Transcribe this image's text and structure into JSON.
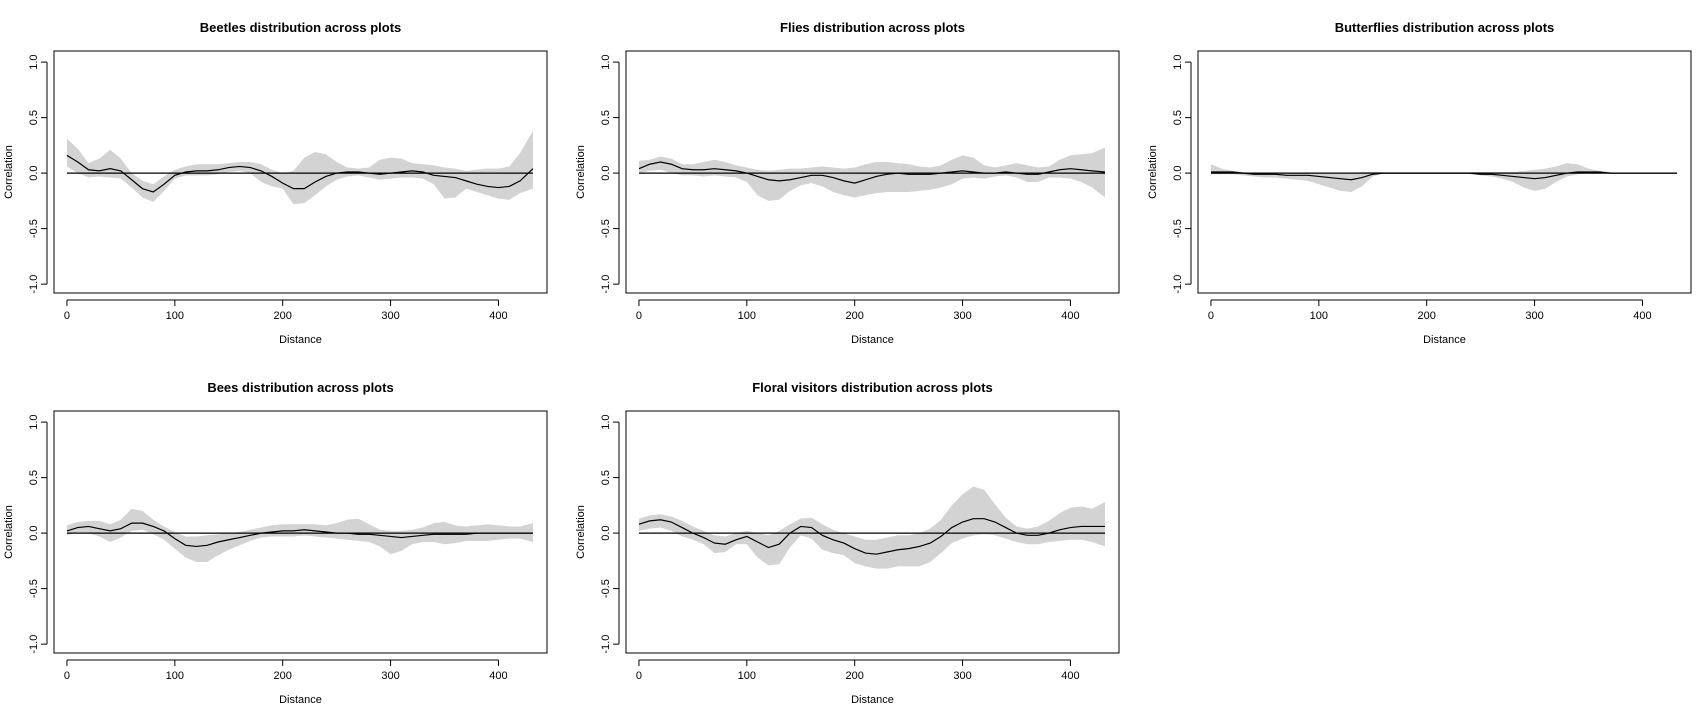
{
  "colors": {
    "band": "#d3d3d3",
    "line": "#000000",
    "axis": "#000000",
    "background": "#ffffff"
  },
  "chart_data": [
    {
      "type": "line",
      "title": "Beetles distribution across plots",
      "xlabel": "Distance",
      "ylabel": "Correlation",
      "xlim": [
        -12,
        445
      ],
      "ylim": [
        -1.08,
        1.1
      ],
      "xticks": [
        0,
        100,
        200,
        300,
        400
      ],
      "yticks": [
        -1.0,
        -0.5,
        0.0,
        0.5,
        1.0
      ],
      "xtick_labels": [
        "0",
        "100",
        "200",
        "300",
        "400"
      ],
      "ytick_labels": [
        "-1.0",
        "-0.5",
        "0.0",
        "0.5",
        "1.0"
      ],
      "grid": false,
      "x": [
        0,
        10,
        20,
        30,
        40,
        50,
        60,
        70,
        80,
        90,
        100,
        110,
        120,
        130,
        140,
        150,
        160,
        170,
        180,
        190,
        200,
        210,
        220,
        230,
        240,
        250,
        260,
        270,
        280,
        290,
        300,
        310,
        320,
        330,
        340,
        350,
        360,
        370,
        380,
        390,
        400,
        410,
        420,
        432
      ],
      "series": [
        {
          "values": [
            0.16,
            0.1,
            0.03,
            0.02,
            0.04,
            0.02,
            -0.06,
            -0.14,
            -0.17,
            -0.1,
            -0.02,
            0.01,
            0.02,
            0.02,
            0.03,
            0.05,
            0.06,
            0.05,
            0.02,
            -0.03,
            -0.09,
            -0.14,
            -0.14,
            -0.08,
            -0.03,
            0.0,
            0.01,
            0.01,
            0.0,
            -0.01,
            0.0,
            0.01,
            0.02,
            0.01,
            -0.02,
            -0.03,
            -0.04,
            -0.07,
            -0.1,
            -0.12,
            -0.13,
            -0.12,
            -0.07,
            0.04
          ]
        }
      ],
      "bands": [
        {
          "lower": [
            0.06,
            0.0,
            -0.04,
            -0.03,
            -0.04,
            -0.05,
            -0.13,
            -0.22,
            -0.26,
            -0.16,
            -0.05,
            -0.02,
            -0.02,
            -0.02,
            -0.01,
            0.01,
            0.02,
            0.0,
            -0.08,
            -0.12,
            -0.14,
            -0.28,
            -0.27,
            -0.2,
            -0.12,
            -0.06,
            -0.03,
            -0.02,
            -0.04,
            -0.06,
            -0.05,
            -0.04,
            -0.04,
            -0.05,
            -0.1,
            -0.23,
            -0.22,
            -0.14,
            -0.17,
            -0.2,
            -0.23,
            -0.24,
            -0.18,
            -0.14
          ],
          "upper": [
            0.31,
            0.22,
            0.09,
            0.13,
            0.21,
            0.13,
            0.0,
            -0.07,
            -0.1,
            -0.03,
            0.03,
            0.06,
            0.08,
            0.08,
            0.08,
            0.09,
            0.1,
            0.1,
            0.08,
            0.03,
            0.0,
            0.02,
            0.14,
            0.19,
            0.17,
            0.1,
            0.05,
            0.04,
            0.05,
            0.12,
            0.14,
            0.13,
            0.09,
            0.08,
            0.07,
            0.05,
            0.04,
            0.02,
            0.03,
            0.04,
            0.04,
            0.06,
            0.18,
            0.38
          ]
        }
      ]
    },
    {
      "type": "line",
      "title": "Flies distribution across plots",
      "xlabel": "Distance",
      "ylabel": "Correlation",
      "xlim": [
        -12,
        445
      ],
      "ylim": [
        -1.08,
        1.1
      ],
      "xticks": [
        0,
        100,
        200,
        300,
        400
      ],
      "yticks": [
        -1.0,
        -0.5,
        0.0,
        0.5,
        1.0
      ],
      "xtick_labels": [
        "0",
        "100",
        "200",
        "300",
        "400"
      ],
      "ytick_labels": [
        "-1.0",
        "-0.5",
        "0.0",
        "0.5",
        "1.0"
      ],
      "grid": false,
      "x": [
        0,
        10,
        20,
        30,
        40,
        50,
        60,
        70,
        80,
        90,
        100,
        110,
        120,
        130,
        140,
        150,
        160,
        170,
        180,
        190,
        200,
        210,
        220,
        230,
        240,
        250,
        260,
        270,
        280,
        290,
        300,
        310,
        320,
        330,
        340,
        350,
        360,
        370,
        380,
        390,
        400,
        410,
        420,
        432
      ],
      "series": [
        {
          "values": [
            0.04,
            0.08,
            0.1,
            0.08,
            0.04,
            0.03,
            0.03,
            0.04,
            0.03,
            0.02,
            0.0,
            -0.03,
            -0.06,
            -0.07,
            -0.06,
            -0.04,
            -0.02,
            -0.02,
            -0.04,
            -0.07,
            -0.09,
            -0.06,
            -0.03,
            -0.01,
            0.0,
            -0.01,
            -0.01,
            -0.01,
            0.0,
            0.01,
            0.02,
            0.01,
            0.0,
            0.0,
            0.01,
            0.0,
            -0.01,
            -0.01,
            0.01,
            0.03,
            0.04,
            0.03,
            0.02,
            0.01
          ]
        }
      ],
      "bands": [
        {
          "lower": [
            0.0,
            0.02,
            0.03,
            0.0,
            -0.02,
            -0.02,
            -0.03,
            -0.02,
            -0.03,
            -0.04,
            -0.08,
            -0.2,
            -0.25,
            -0.24,
            -0.16,
            -0.11,
            -0.09,
            -0.12,
            -0.17,
            -0.2,
            -0.22,
            -0.2,
            -0.18,
            -0.17,
            -0.17,
            -0.17,
            -0.16,
            -0.15,
            -0.13,
            -0.1,
            -0.05,
            -0.04,
            -0.05,
            -0.03,
            -0.02,
            -0.04,
            -0.08,
            -0.08,
            -0.04,
            -0.04,
            -0.05,
            -0.08,
            -0.13,
            -0.22
          ],
          "upper": [
            0.11,
            0.12,
            0.15,
            0.13,
            0.08,
            0.08,
            0.1,
            0.12,
            0.1,
            0.07,
            0.05,
            0.03,
            0.02,
            0.03,
            0.04,
            0.04,
            0.05,
            0.06,
            0.05,
            0.04,
            0.05,
            0.08,
            0.1,
            0.1,
            0.09,
            0.08,
            0.06,
            0.05,
            0.07,
            0.12,
            0.16,
            0.14,
            0.07,
            0.05,
            0.07,
            0.09,
            0.07,
            0.05,
            0.06,
            0.12,
            0.16,
            0.17,
            0.18,
            0.23
          ]
        }
      ]
    },
    {
      "type": "line",
      "title": "Butterflies distribution across plots",
      "xlabel": "Distance",
      "ylabel": "Correlation",
      "xlim": [
        -12,
        445
      ],
      "ylim": [
        -1.08,
        1.1
      ],
      "xticks": [
        0,
        100,
        200,
        300,
        400
      ],
      "yticks": [
        -1.0,
        -0.5,
        0.0,
        0.5,
        1.0
      ],
      "xtick_labels": [
        "0",
        "100",
        "200",
        "300",
        "400"
      ],
      "ytick_labels": [
        "-1.0",
        "-0.5",
        "0.0",
        "0.5",
        "1.0"
      ],
      "grid": false,
      "x": [
        0,
        10,
        20,
        30,
        40,
        50,
        60,
        70,
        80,
        90,
        100,
        110,
        120,
        130,
        140,
        150,
        160,
        170,
        180,
        190,
        200,
        210,
        220,
        230,
        240,
        250,
        260,
        270,
        280,
        290,
        300,
        310,
        320,
        330,
        340,
        350,
        360,
        370,
        380,
        390,
        400,
        410,
        420,
        432
      ],
      "series": [
        {
          "values": [
            0.01,
            0.01,
            0.01,
            0.0,
            -0.01,
            -0.01,
            -0.01,
            -0.02,
            -0.02,
            -0.02,
            -0.03,
            -0.04,
            -0.05,
            -0.06,
            -0.04,
            -0.01,
            0.0,
            0.0,
            0.0,
            0.0,
            0.0,
            0.0,
            0.0,
            0.0,
            0.0,
            -0.01,
            -0.01,
            -0.02,
            -0.03,
            -0.04,
            -0.05,
            -0.04,
            -0.02,
            0.0,
            0.01,
            0.01,
            0.01,
            0.0,
            0.0,
            0.0,
            0.0,
            0.0,
            0.0,
            0.0
          ]
        }
      ],
      "bands": [
        {
          "lower": [
            -0.01,
            -0.01,
            -0.01,
            -0.02,
            -0.03,
            -0.04,
            -0.04,
            -0.05,
            -0.06,
            -0.07,
            -0.1,
            -0.13,
            -0.16,
            -0.17,
            -0.12,
            -0.03,
            0.0,
            0.0,
            0.0,
            0.0,
            0.0,
            0.0,
            0.0,
            0.0,
            -0.01,
            -0.02,
            -0.03,
            -0.05,
            -0.08,
            -0.13,
            -0.16,
            -0.14,
            -0.08,
            -0.03,
            -0.01,
            0.0,
            0.0,
            0.0,
            0.0,
            0.0,
            0.0,
            0.0,
            0.0,
            0.0
          ],
          "upper": [
            0.08,
            0.04,
            0.02,
            0.01,
            0.0,
            0.0,
            0.0,
            0.0,
            0.0,
            0.0,
            0.0,
            0.0,
            0.0,
            0.0,
            0.01,
            0.01,
            0.01,
            0.01,
            0.01,
            0.01,
            0.01,
            0.01,
            0.01,
            0.01,
            0.01,
            0.01,
            0.01,
            0.01,
            0.01,
            0.02,
            0.03,
            0.04,
            0.06,
            0.09,
            0.08,
            0.04,
            0.02,
            0.01,
            0.0,
            0.0,
            0.0,
            0.0,
            0.0,
            0.0
          ]
        }
      ]
    },
    {
      "type": "line",
      "title": "Bees distribution across plots",
      "xlabel": "Distance",
      "ylabel": "Correlation",
      "xlim": [
        -12,
        445
      ],
      "ylim": [
        -1.08,
        1.1
      ],
      "xticks": [
        0,
        100,
        200,
        300,
        400
      ],
      "yticks": [
        -1.0,
        -0.5,
        0.0,
        0.5,
        1.0
      ],
      "xtick_labels": [
        "0",
        "100",
        "200",
        "300",
        "400"
      ],
      "ytick_labels": [
        "-1.0",
        "-0.5",
        "0.0",
        "0.5",
        "1.0"
      ],
      "grid": false,
      "x": [
        0,
        10,
        20,
        30,
        40,
        50,
        60,
        70,
        80,
        90,
        100,
        110,
        120,
        130,
        140,
        150,
        160,
        170,
        180,
        190,
        200,
        210,
        220,
        230,
        240,
        250,
        260,
        270,
        280,
        290,
        300,
        310,
        320,
        330,
        340,
        350,
        360,
        370,
        380,
        390,
        400,
        410,
        420,
        432
      ],
      "series": [
        {
          "values": [
            0.02,
            0.05,
            0.06,
            0.04,
            0.02,
            0.04,
            0.09,
            0.09,
            0.06,
            0.02,
            -0.05,
            -0.11,
            -0.12,
            -0.11,
            -0.08,
            -0.06,
            -0.04,
            -0.02,
            0.0,
            0.01,
            0.02,
            0.02,
            0.03,
            0.02,
            0.01,
            0.0,
            0.0,
            -0.01,
            -0.01,
            -0.02,
            -0.03,
            -0.04,
            -0.03,
            -0.02,
            -0.01,
            -0.01,
            -0.01,
            -0.01,
            0.0,
            0.0,
            0.0,
            0.0,
            0.0,
            0.0
          ]
        }
      ],
      "bands": [
        {
          "lower": [
            -0.02,
            0.01,
            0.0,
            -0.03,
            -0.08,
            -0.04,
            0.02,
            0.03,
            -0.01,
            -0.06,
            -0.14,
            -0.22,
            -0.26,
            -0.26,
            -0.2,
            -0.15,
            -0.11,
            -0.07,
            -0.04,
            -0.03,
            -0.03,
            -0.03,
            -0.02,
            -0.03,
            -0.04,
            -0.05,
            -0.06,
            -0.07,
            -0.08,
            -0.12,
            -0.19,
            -0.16,
            -0.1,
            -0.08,
            -0.08,
            -0.1,
            -0.09,
            -0.07,
            -0.07,
            -0.07,
            -0.06,
            -0.05,
            -0.05,
            -0.08
          ],
          "upper": [
            0.07,
            0.1,
            0.11,
            0.11,
            0.08,
            0.12,
            0.22,
            0.2,
            0.12,
            0.06,
            0.01,
            -0.03,
            -0.03,
            -0.02,
            -0.01,
            0.0,
            0.01,
            0.03,
            0.05,
            0.07,
            0.08,
            0.08,
            0.08,
            0.08,
            0.07,
            0.09,
            0.12,
            0.13,
            0.08,
            0.03,
            0.02,
            0.02,
            0.03,
            0.05,
            0.09,
            0.1,
            0.07,
            0.06,
            0.07,
            0.08,
            0.07,
            0.06,
            0.06,
            0.09
          ]
        }
      ]
    },
    {
      "type": "line",
      "title": "Floral visitors distribution across plots",
      "xlabel": "Distance",
      "ylabel": "Correlation",
      "xlim": [
        -12,
        445
      ],
      "ylim": [
        -1.08,
        1.1
      ],
      "xticks": [
        0,
        100,
        200,
        300,
        400
      ],
      "yticks": [
        -1.0,
        -0.5,
        0.0,
        0.5,
        1.0
      ],
      "xtick_labels": [
        "0",
        "100",
        "200",
        "300",
        "400"
      ],
      "ytick_labels": [
        "-1.0",
        "-0.5",
        "0.0",
        "0.5",
        "1.0"
      ],
      "grid": false,
      "x": [
        0,
        10,
        20,
        30,
        40,
        50,
        60,
        70,
        80,
        90,
        100,
        110,
        120,
        130,
        140,
        150,
        160,
        170,
        180,
        190,
        200,
        210,
        220,
        230,
        240,
        250,
        260,
        270,
        280,
        290,
        300,
        310,
        320,
        330,
        340,
        350,
        360,
        370,
        380,
        390,
        400,
        410,
        420,
        432
      ],
      "series": [
        {
          "values": [
            0.08,
            0.11,
            0.12,
            0.1,
            0.05,
            0.0,
            -0.04,
            -0.09,
            -0.1,
            -0.06,
            -0.03,
            -0.08,
            -0.13,
            -0.1,
            0.0,
            0.06,
            0.05,
            -0.02,
            -0.06,
            -0.09,
            -0.14,
            -0.18,
            -0.19,
            -0.17,
            -0.15,
            -0.14,
            -0.12,
            -0.09,
            -0.03,
            0.05,
            0.1,
            0.13,
            0.13,
            0.1,
            0.05,
            0.0,
            -0.02,
            -0.02,
            0.0,
            0.03,
            0.05,
            0.06,
            0.06,
            0.06
          ]
        }
      ],
      "bands": [
        {
          "lower": [
            0.02,
            0.04,
            0.05,
            0.02,
            -0.03,
            -0.06,
            -0.1,
            -0.18,
            -0.17,
            -0.1,
            -0.1,
            -0.22,
            -0.29,
            -0.28,
            -0.13,
            -0.02,
            -0.05,
            -0.15,
            -0.18,
            -0.2,
            -0.27,
            -0.3,
            -0.32,
            -0.32,
            -0.3,
            -0.3,
            -0.3,
            -0.26,
            -0.18,
            -0.09,
            -0.05,
            -0.02,
            -0.01,
            -0.02,
            -0.05,
            -0.08,
            -0.1,
            -0.1,
            -0.08,
            -0.07,
            -0.06,
            -0.06,
            -0.08,
            -0.12
          ],
          "upper": [
            0.13,
            0.16,
            0.17,
            0.15,
            0.11,
            0.06,
            0.02,
            -0.02,
            -0.03,
            0.0,
            0.02,
            0.0,
            -0.02,
            0.02,
            0.08,
            0.13,
            0.14,
            0.08,
            0.03,
            0.0,
            -0.03,
            -0.06,
            -0.06,
            -0.04,
            -0.02,
            -0.02,
            0.0,
            0.04,
            0.12,
            0.25,
            0.35,
            0.42,
            0.39,
            0.26,
            0.14,
            0.06,
            0.04,
            0.06,
            0.11,
            0.18,
            0.23,
            0.24,
            0.22,
            0.28
          ]
        }
      ]
    }
  ]
}
